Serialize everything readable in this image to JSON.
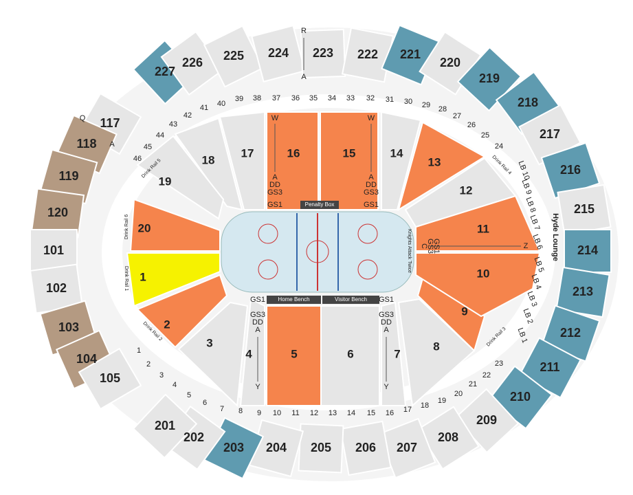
{
  "lower_sections": [
    {
      "label": "16",
      "color": "#f5844c"
    },
    {
      "label": "15",
      "color": "#f5844c"
    },
    {
      "label": "5",
      "color": "#f5844c"
    },
    {
      "label": "6",
      "color": "#e6e6e6"
    },
    {
      "label": "17",
      "color": "#e6e6e6"
    },
    {
      "label": "18",
      "color": "#e6e6e6"
    },
    {
      "label": "19",
      "color": "#e6e6e6"
    },
    {
      "label": "20",
      "color": "#f5844c"
    },
    {
      "label": "1",
      "color": "#f6f200"
    },
    {
      "label": "2",
      "color": "#f5844c"
    },
    {
      "label": "3",
      "color": "#e6e6e6"
    },
    {
      "label": "4",
      "color": "#e6e6e6"
    },
    {
      "label": "7",
      "color": "#e6e6e6"
    },
    {
      "label": "8",
      "color": "#e6e6e6"
    },
    {
      "label": "9",
      "color": "#f5844c"
    },
    {
      "label": "10",
      "color": "#f5844c"
    },
    {
      "label": "11",
      "color": "#f5844c"
    },
    {
      "label": "12",
      "color": "#e6e6e6"
    },
    {
      "label": "13",
      "color": "#f5844c"
    },
    {
      "label": "14",
      "color": "#e6e6e6"
    }
  ],
  "outer_sections": [
    {
      "label": "227",
      "color": "#5f9bb0"
    },
    {
      "label": "226",
      "color": "#e6e6e6"
    },
    {
      "label": "225",
      "color": "#e6e6e6"
    },
    {
      "label": "224",
      "color": "#e6e6e6"
    },
    {
      "label": "223",
      "color": "#e6e6e6"
    },
    {
      "label": "222",
      "color": "#e6e6e6"
    },
    {
      "label": "221",
      "color": "#5f9bb0"
    },
    {
      "label": "220",
      "color": "#e6e6e6"
    },
    {
      "label": "219",
      "color": "#5f9bb0"
    },
    {
      "label": "218",
      "color": "#5f9bb0"
    },
    {
      "label": "217",
      "color": "#e6e6e6"
    },
    {
      "label": "216",
      "color": "#5f9bb0"
    },
    {
      "label": "215",
      "color": "#e6e6e6"
    },
    {
      "label": "214",
      "color": "#5f9bb0"
    },
    {
      "label": "213",
      "color": "#5f9bb0"
    },
    {
      "label": "212",
      "color": "#5f9bb0"
    },
    {
      "label": "211",
      "color": "#5f9bb0"
    },
    {
      "label": "210",
      "color": "#5f9bb0"
    },
    {
      "label": "209",
      "color": "#e6e6e6"
    },
    {
      "label": "208",
      "color": "#e6e6e6"
    },
    {
      "label": "207",
      "color": "#e6e6e6"
    },
    {
      "label": "206",
      "color": "#e6e6e6"
    },
    {
      "label": "205",
      "color": "#e6e6e6"
    },
    {
      "label": "204",
      "color": "#e6e6e6"
    },
    {
      "label": "203",
      "color": "#5f9bb0"
    },
    {
      "label": "202",
      "color": "#e6e6e6"
    },
    {
      "label": "201",
      "color": "#e6e6e6"
    },
    {
      "label": "117",
      "color": "#e6e6e6"
    },
    {
      "label": "118",
      "color": "#b49a82"
    },
    {
      "label": "119",
      "color": "#b49a82"
    },
    {
      "label": "120",
      "color": "#b49a82"
    },
    {
      "label": "101",
      "color": "#e6e6e6"
    },
    {
      "label": "102",
      "color": "#e6e6e6"
    },
    {
      "label": "103",
      "color": "#b49a82"
    },
    {
      "label": "104",
      "color": "#b49a82"
    },
    {
      "label": "105",
      "color": "#e6e6e6"
    }
  ],
  "top_rows": [
    "46",
    "45",
    "44",
    "43",
    "42",
    "41",
    "40",
    "39",
    "38",
    "37",
    "36",
    "35",
    "34",
    "33",
    "32",
    "31",
    "30",
    "29",
    "28",
    "27",
    "26",
    "25",
    "24"
  ],
  "bottom_rows": [
    "1",
    "2",
    "3",
    "4",
    "5",
    "6",
    "7",
    "8",
    "9",
    "10",
    "11",
    "12",
    "13",
    "14",
    "15",
    "16",
    "17",
    "18",
    "19",
    "20",
    "21",
    "22",
    "23"
  ],
  "lb": [
    "LB 10",
    "LB 9",
    "LB 8",
    "LB 7",
    "LB 6",
    "LB 5",
    "LB 4",
    "LB 3",
    "LB 2",
    "LB 1"
  ],
  "bars": [
    "Penalty Box",
    "Home Bench",
    "Visitor Bench"
  ],
  "notes": [
    "Hyde Lounge",
    "Knights Attack Twice",
    "Drink Rail 5",
    "Drink Rail 6",
    "Drink Rail 1",
    "Drink Rail 2",
    "Drink Rail 3",
    "Drink Rail 4"
  ],
  "row_letters": [
    "W",
    "A",
    "DD",
    "GS3",
    "GS1",
    "W",
    "A",
    "DD",
    "GS3",
    "GS1",
    "GS1",
    "GS3",
    "DD",
    "A",
    "Y",
    "GS1",
    "GS3",
    "DD",
    "A",
    "Y",
    "C",
    "GS3",
    "GS1",
    "Z",
    "R",
    "A",
    "Q",
    "A"
  ]
}
